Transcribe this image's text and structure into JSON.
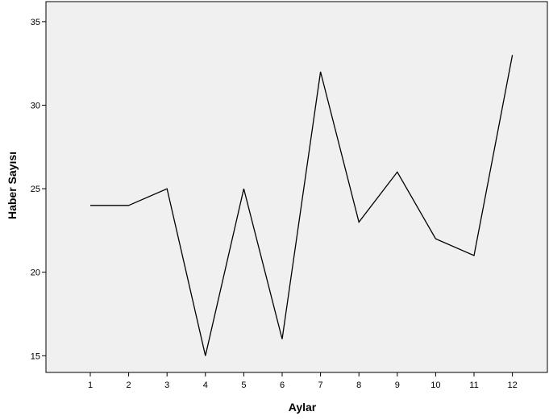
{
  "chart_data": {
    "type": "line",
    "title": "",
    "xlabel": "Aylar",
    "ylabel": "Haber Sayısı",
    "categories": [
      "1",
      "2",
      "3",
      "4",
      "5",
      "6",
      "7",
      "8",
      "9",
      "10",
      "11",
      "12"
    ],
    "series": [
      {
        "values": [
          24,
          24,
          25,
          15,
          25,
          16,
          32,
          23,
          26,
          22,
          21,
          33
        ]
      }
    ],
    "yticks": [
      15,
      20,
      25,
      30,
      35
    ],
    "ylim": [
      14,
      36.2
    ],
    "grid": false,
    "colors": {
      "plot_background": "#f0f0f0",
      "line": "#000000",
      "axis": "#000000"
    }
  }
}
